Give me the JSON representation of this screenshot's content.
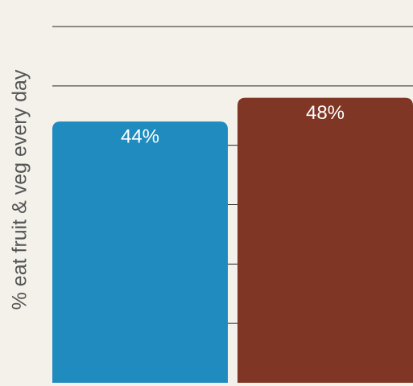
{
  "chart_data": {
    "type": "bar",
    "y_label": "% eat fruit & veg every day",
    "categories": [
      null,
      null
    ],
    "values": [
      44,
      48
    ],
    "value_labels": [
      "44%",
      "48%"
    ],
    "colors": [
      "#1f8bbf",
      "#7f3624"
    ],
    "ylim": [
      0,
      60
    ],
    "yticks": [
      10,
      20,
      30,
      40,
      50,
      60
    ],
    "grid": true
  }
}
